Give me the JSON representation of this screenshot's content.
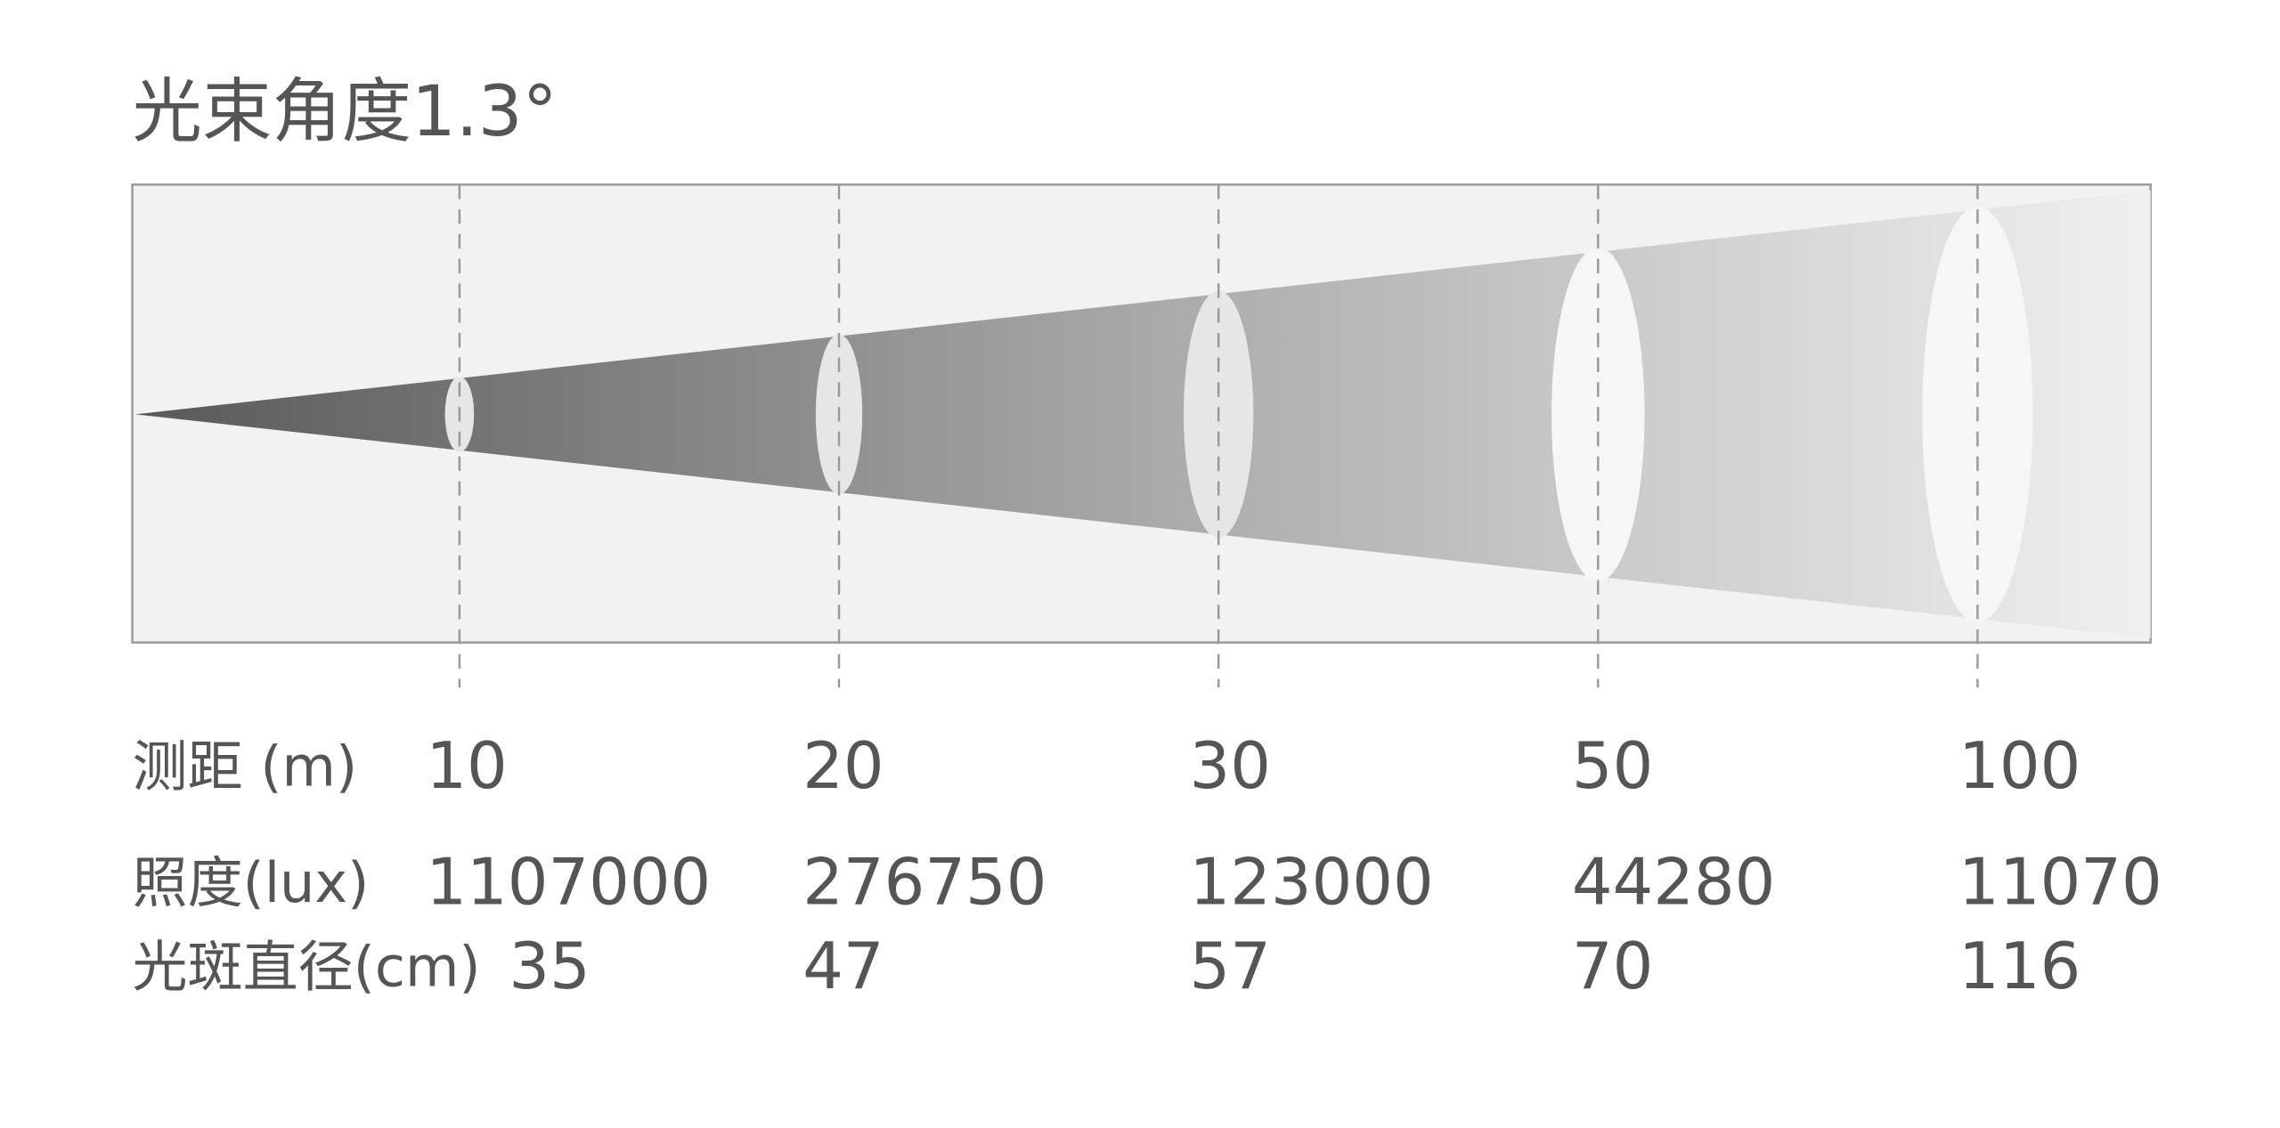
{
  "title": "光束角度1.3°",
  "rows": [
    {
      "label": "测距 (m)",
      "values": [
        "10",
        "20",
        "30",
        "50",
        "100"
      ]
    },
    {
      "label": "照度(lux)",
      "values": [
        "1107000",
        "276750",
        "123000",
        "44280",
        "11070"
      ]
    },
    {
      "label": "光斑直径(cm)",
      "values": [
        "35",
        "47",
        "57",
        "70",
        "116"
      ]
    }
  ]
}
